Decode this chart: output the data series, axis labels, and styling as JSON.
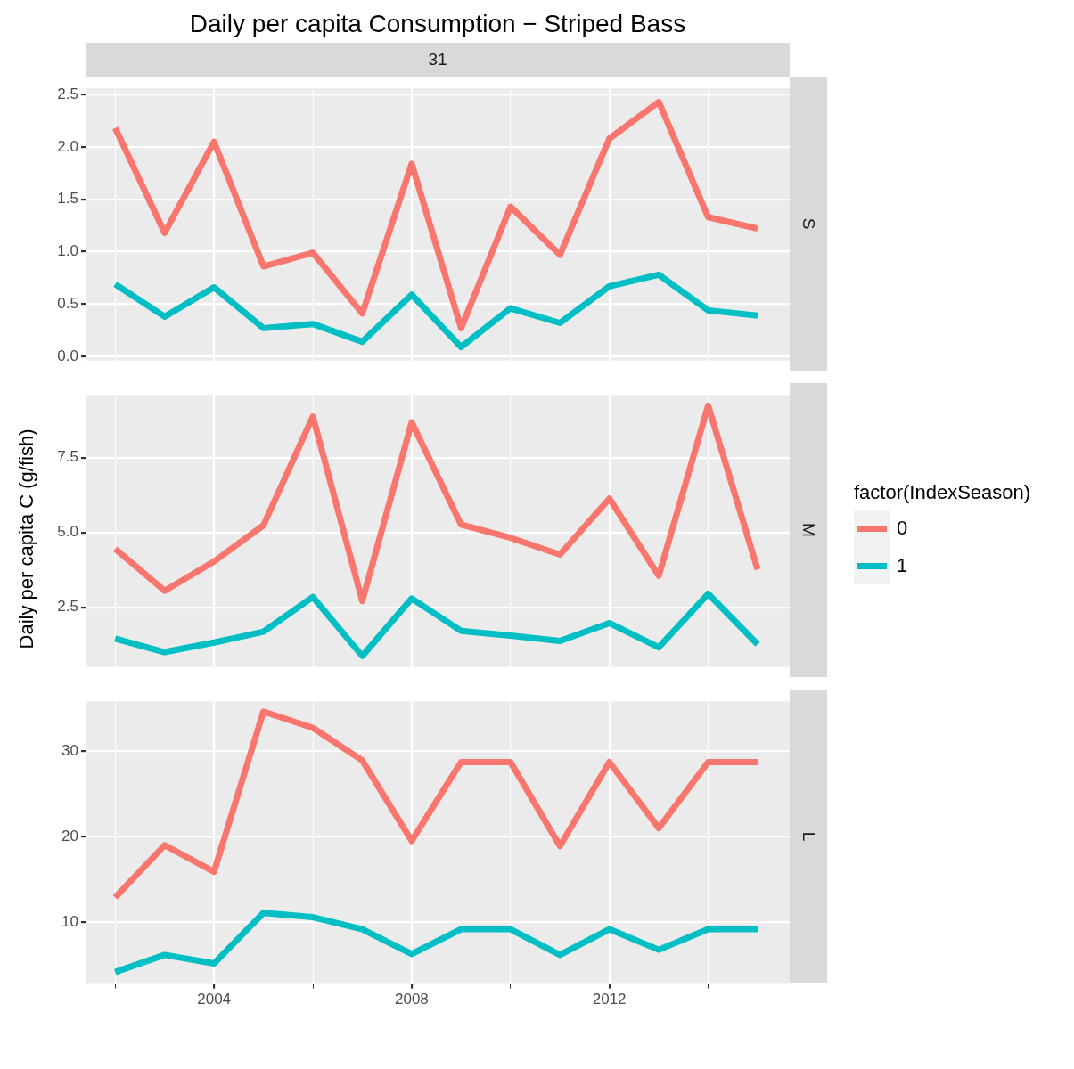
{
  "chart_data": [
    {
      "type": "line",
      "title": "Daily per capita Consumption − Striped Bass",
      "subtitle": "31",
      "annotations": [
        "S"
      ],
      "x": [
        2002,
        2003,
        2004,
        2005,
        2006,
        2007,
        2008,
        2009,
        2010,
        2011,
        2012,
        2013,
        2014,
        2015
      ],
      "series": [
        {
          "color": "#f8766d",
          "values": [
            2.18,
            1.18,
            2.05,
            0.86,
            0.99,
            0.41,
            1.84,
            0.27,
            1.43,
            0.97,
            2.08,
            2.43,
            1.33,
            1.22
          ]
        },
        {
          "color": "#00bfc4",
          "values": [
            0.69,
            0.38,
            0.66,
            0.27,
            0.31,
            0.14,
            0.59,
            0.09,
            0.46,
            0.32,
            0.67,
            0.78,
            0.44,
            0.39
          ]
        }
      ],
      "xlim": [
        2001.4,
        2015.65
      ],
      "xticks": [
        {
          "value": 2002,
          "label": null
        },
        {
          "value": 2004,
          "label": null
        },
        {
          "value": 2006,
          "label": null
        },
        {
          "value": 2008,
          "label": null
        },
        {
          "value": 2010,
          "label": null
        },
        {
          "value": 2012,
          "label": null
        },
        {
          "value": 2014,
          "label": null
        }
      ],
      "ylim": [
        -0.04,
        2.56
      ],
      "yticks": [
        {
          "value": 0,
          "label": "0.0"
        },
        {
          "value": 0.5,
          "label": "0.5"
        },
        {
          "value": 1,
          "label": "1.0"
        },
        {
          "value": 1.5,
          "label": "1.5"
        },
        {
          "value": 2,
          "label": "2.0"
        },
        {
          "value": 2.5,
          "label": "2.5"
        }
      ],
      "grid": true,
      "tick_labels": "y"
    },
    {
      "type": "line",
      "ylabel": "Daily per capita C (g/fish)",
      "annotations": [
        "M"
      ],
      "legend_title": "factor(IndexSeason)",
      "legend": "right",
      "x": [
        2002,
        2003,
        2004,
        2005,
        2006,
        2007,
        2008,
        2009,
        2010,
        2011,
        2012,
        2013,
        2014,
        2015
      ],
      "series": [
        {
          "name": "0",
          "color": "#f8766d",
          "values": [
            4.45,
            3.05,
            4.03,
            5.24,
            8.87,
            2.71,
            8.68,
            5.26,
            4.82,
            4.26,
            6.13,
            3.55,
            9.24,
            3.76
          ]
        },
        {
          "name": "1",
          "color": "#00bfc4",
          "values": [
            1.45,
            1.0,
            1.32,
            1.68,
            2.84,
            0.87,
            2.79,
            1.71,
            1.55,
            1.37,
            1.97,
            1.16,
            2.95,
            1.26
          ]
        }
      ],
      "xlim": [
        2001.4,
        2015.65
      ],
      "xticks": [
        {
          "value": 2002,
          "label": null
        },
        {
          "value": 2004,
          "label": null
        },
        {
          "value": 2006,
          "label": null
        },
        {
          "value": 2008,
          "label": null
        },
        {
          "value": 2010,
          "label": null
        },
        {
          "value": 2012,
          "label": null
        },
        {
          "value": 2014,
          "label": null
        }
      ],
      "ylim": [
        0.5,
        9.6
      ],
      "yticks": [
        {
          "value": 2.5,
          "label": "2.5"
        },
        {
          "value": 5,
          "label": "5.0"
        },
        {
          "value": 7.5,
          "label": "7.5"
        }
      ],
      "grid": true,
      "tick_labels": "y"
    },
    {
      "type": "line",
      "annotations": [
        "L"
      ],
      "x": [
        2002,
        2003,
        2004,
        2005,
        2006,
        2007,
        2008,
        2009,
        2010,
        2011,
        2012,
        2013,
        2014,
        2015
      ],
      "series": [
        {
          "color": "#f8766d",
          "values": [
            12.9,
            19.0,
            15.9,
            34.6,
            32.7,
            28.9,
            19.5,
            28.7,
            28.7,
            18.9,
            28.7,
            21.0,
            28.7,
            28.7
          ]
        },
        {
          "color": "#00bfc4",
          "values": [
            4.2,
            6.2,
            5.2,
            11.1,
            10.6,
            9.2,
            6.3,
            9.2,
            9.2,
            6.2,
            9.2,
            6.8,
            9.2,
            9.2
          ]
        }
      ],
      "xlim": [
        2001.4,
        2015.65
      ],
      "xticks": [
        {
          "value": 2002,
          "label": null
        },
        {
          "value": 2004,
          "label": "2004"
        },
        {
          "value": 2006,
          "label": null
        },
        {
          "value": 2008,
          "label": "2008"
        },
        {
          "value": 2010,
          "label": null
        },
        {
          "value": 2012,
          "label": "2012"
        },
        {
          "value": 2014,
          "label": null
        }
      ],
      "ylim": [
        2.8,
        35.8
      ],
      "yticks": [
        10,
        20,
        30
      ],
      "grid": true
    }
  ]
}
